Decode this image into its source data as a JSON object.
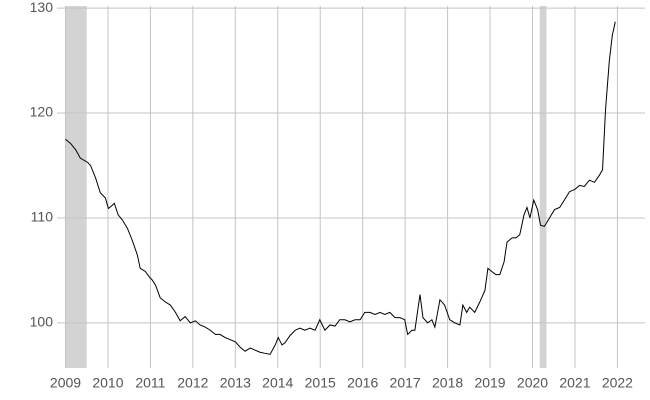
{
  "chart_data": {
    "type": "line",
    "xlim": [
      2008.8,
      2022.65
    ],
    "ylim": [
      95.7,
      130.2
    ],
    "xticks": [
      2009,
      2010,
      2011,
      2012,
      2013,
      2014,
      2015,
      2016,
      2017,
      2018,
      2019,
      2020,
      2021,
      2022
    ],
    "yticks": [
      100,
      110,
      120,
      130
    ],
    "grid": true,
    "shaded_regions": [
      [
        2009.0,
        2009.5
      ],
      [
        2020.17,
        2020.33
      ]
    ],
    "shade_color": "#d3d3d3",
    "series": [
      {
        "color": "#000000",
        "x": [
          2009.0,
          2009.12,
          2009.24,
          2009.35,
          2009.52,
          2009.59,
          2009.71,
          2009.82,
          2009.94,
          2010.01,
          2010.1,
          2010.15,
          2010.24,
          2010.34,
          2010.46,
          2010.57,
          2010.69,
          2010.76,
          2010.88,
          2010.99,
          2011.04,
          2011.12,
          2011.23,
          2011.35,
          2011.47,
          2011.59,
          2011.7,
          2011.82,
          2011.94,
          2012.06,
          2012.17,
          2012.29,
          2012.41,
          2012.53,
          2012.64,
          2012.76,
          2012.88,
          2013.0,
          2013.11,
          2013.23,
          2013.35,
          2013.47,
          2013.58,
          2013.7,
          2013.82,
          2013.94,
          2014.01,
          2014.1,
          2014.17,
          2014.29,
          2014.41,
          2014.52,
          2014.64,
          2014.76,
          2014.88,
          2014.99,
          2015.11,
          2015.23,
          2015.35,
          2015.46,
          2015.58,
          2015.7,
          2015.82,
          2015.94,
          2016.05,
          2016.17,
          2016.29,
          2016.41,
          2016.52,
          2016.64,
          2016.76,
          2016.88,
          2016.99,
          2017.06,
          2017.16,
          2017.23,
          2017.35,
          2017.42,
          2017.53,
          2017.63,
          2017.7,
          2017.82,
          2017.93,
          2018.05,
          2018.17,
          2018.29,
          2018.36,
          2018.45,
          2018.52,
          2018.64,
          2018.76,
          2018.88,
          2018.95,
          2019.04,
          2019.14,
          2019.23,
          2019.33,
          2019.4,
          2019.52,
          2019.61,
          2019.7,
          2019.8,
          2019.87,
          2019.94,
          2020.03,
          2020.12,
          2020.19,
          2020.28,
          2020.4,
          2020.52,
          2020.64,
          2020.75,
          2020.87,
          2020.99,
          2021.11,
          2021.22,
          2021.34,
          2021.46,
          2021.58,
          2021.65,
          2021.72,
          2021.81,
          2021.88,
          2021.95
        ],
        "values": [
          117.5,
          117.1,
          116.5,
          115.7,
          115.3,
          115.0,
          113.8,
          112.4,
          111.9,
          110.9,
          111.2,
          111.4,
          110.3,
          109.8,
          109.0,
          107.9,
          106.5,
          105.2,
          104.9,
          104.3,
          104.1,
          103.6,
          102.4,
          102.0,
          101.7,
          101.0,
          100.2,
          100.6,
          100.0,
          100.2,
          99.8,
          99.6,
          99.3,
          98.9,
          98.9,
          98.6,
          98.4,
          98.2,
          97.7,
          97.3,
          97.6,
          97.4,
          97.2,
          97.1,
          97.0,
          97.9,
          98.6,
          97.9,
          98.1,
          98.8,
          99.3,
          99.5,
          99.3,
          99.5,
          99.3,
          100.3,
          99.3,
          99.8,
          99.7,
          100.3,
          100.3,
          100.1,
          100.3,
          100.3,
          101.0,
          101.0,
          100.8,
          101.0,
          100.8,
          101.0,
          100.5,
          100.5,
          100.3,
          98.9,
          99.3,
          99.3,
          102.7,
          100.5,
          100.0,
          100.3,
          99.6,
          102.2,
          101.7,
          100.3,
          100.0,
          99.8,
          101.7,
          101.0,
          101.5,
          101.0,
          102.0,
          103.1,
          105.2,
          104.9,
          104.6,
          104.6,
          105.8,
          107.7,
          108.1,
          108.1,
          108.4,
          110.3,
          111.0,
          110.0,
          111.7,
          110.8,
          109.3,
          109.2,
          110.0,
          110.8,
          111.0,
          111.7,
          112.5,
          112.7,
          113.1,
          113.0,
          113.6,
          113.4,
          114.1,
          114.6,
          120.3,
          125.0,
          127.4,
          128.7
        ]
      }
    ]
  }
}
